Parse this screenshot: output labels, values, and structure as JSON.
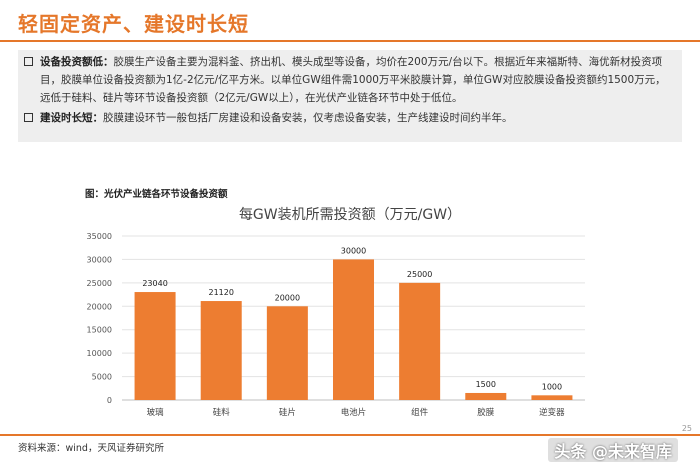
{
  "header": {
    "title": "轻固定资产、建设时长短"
  },
  "notes": [
    {
      "lead": "设备投资额低：",
      "text": "胶膜生产设备主要为混料釜、挤出机、模头成型等设备，均价在200万元/台以下。根据近年来福斯特、海优新材投资项目，胶膜单位设备投资额为1亿-2亿元/亿平方米。以单位GW组件需1000万平米胶膜计算，单位GW对应胶膜设备投资额约1500万元，远低于硅料、硅片等环节设备投资额（2亿元/GW以上），在光伏产业链各环节中处于低位。"
    },
    {
      "lead": "建设时长短：",
      "text": "胶膜建设环节一般包括厂房建设和设备安装，仅考虑设备安装，生产线建设时间约半年。"
    }
  ],
  "figure": {
    "caption": "图：光伏产业链各环节设备投资额"
  },
  "chart_data": {
    "type": "bar",
    "title": "每GW装机所需投资额（万元/GW）",
    "categories": [
      "玻璃",
      "硅料",
      "硅片",
      "电池片",
      "组件",
      "胶膜",
      "逆变器"
    ],
    "values": [
      23040,
      21120,
      20000,
      30000,
      25000,
      1500,
      1000
    ],
    "ylim": [
      0,
      35000
    ],
    "yticks": [
      "0",
      "5000",
      "10000",
      "15000",
      "20000",
      "25000",
      "30000",
      "35000"
    ],
    "grid": true,
    "bar_color": "#ed7d31"
  },
  "footer": {
    "source": "资料来源：wind，天风证券研究所",
    "watermark": "头条 @未来智库",
    "page_number": "25"
  }
}
